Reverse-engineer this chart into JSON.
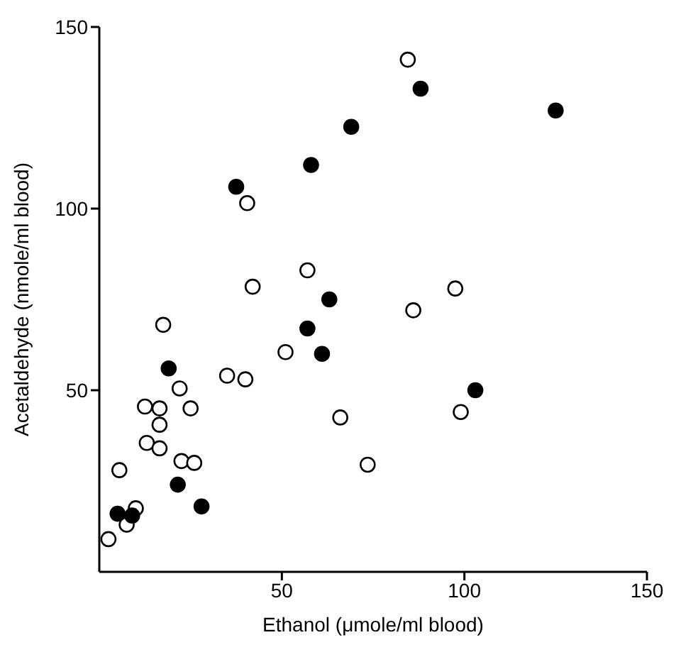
{
  "chart_data": {
    "type": "scatter",
    "xlabel": "Ethanol (μmole/ml blood)",
    "ylabel": "Acetaldehyde (nmole/ml blood)",
    "xlim": [
      0,
      150
    ],
    "xticks": [
      50,
      100,
      150
    ],
    "ylim": [
      0,
      150
    ],
    "yticks": [
      50,
      100,
      150
    ],
    "marker": "circle",
    "series": [
      {
        "color": "#000000",
        "x": [
          88,
          125,
          69,
          58,
          37.5,
          63,
          57,
          61,
          19,
          103,
          21.5,
          28,
          5,
          9
        ],
        "values": [
          133,
          127,
          122.5,
          112,
          106,
          75,
          67,
          60,
          56,
          50,
          24,
          18,
          16,
          15.5
        ]
      },
      {
        "color": "#ffffff",
        "x": [
          84.5,
          40.5,
          57,
          42,
          97.5,
          86,
          17.5,
          51,
          35,
          40,
          22,
          12.5,
          16.5,
          25,
          99,
          66,
          16.5,
          13,
          16.5,
          22.5,
          26,
          73.5,
          5.5,
          10,
          7.5,
          2.5
        ],
        "values": [
          141,
          101.5,
          83,
          78.5,
          78,
          72,
          68,
          60.5,
          54,
          53,
          50.5,
          45.5,
          45,
          45,
          44,
          42.5,
          40.5,
          35.5,
          34,
          30.5,
          30,
          29.5,
          28,
          17.5,
          13,
          9
        ]
      }
    ]
  }
}
